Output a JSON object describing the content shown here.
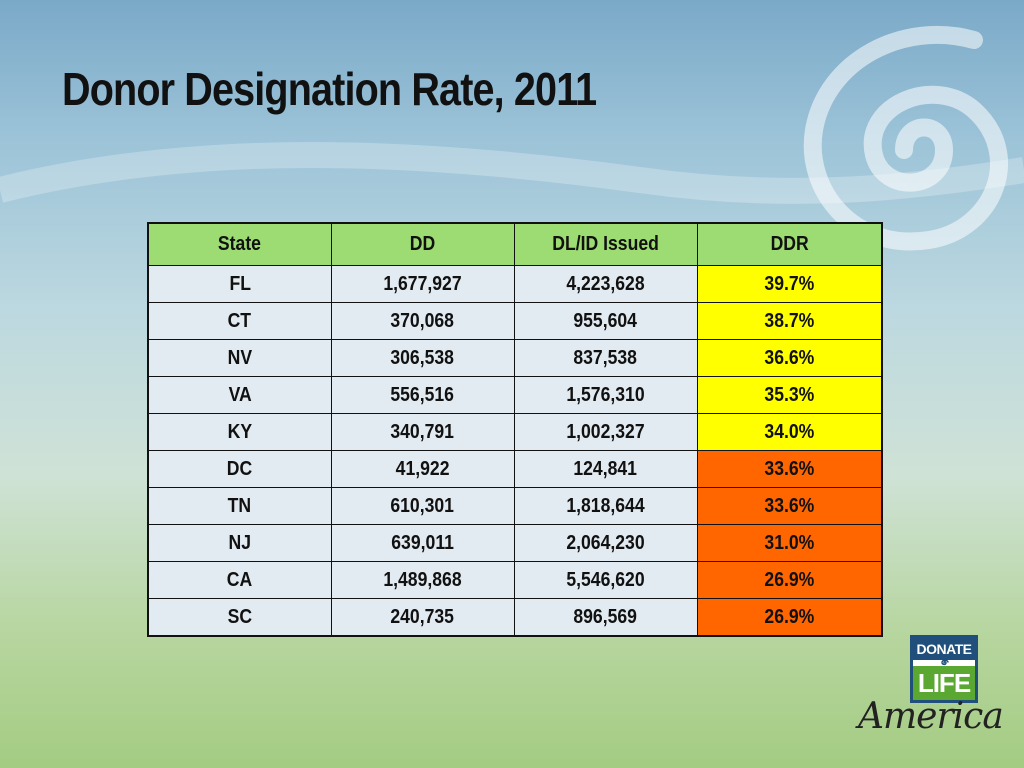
{
  "slide": {
    "title": "Donor Designation Rate, 2011"
  },
  "table": {
    "headers": [
      "State",
      "DD",
      "DL/ID Issued",
      "DDR"
    ],
    "rows": [
      {
        "state": "FL",
        "dd": "1,677,927",
        "dlid": "4,223,628",
        "ddr": "39.7%"
      },
      {
        "state": "CT",
        "dd": "370,068",
        "dlid": "955,604",
        "ddr": "38.7%"
      },
      {
        "state": "NV",
        "dd": "306,538",
        "dlid": "837,538",
        "ddr": "36.6%"
      },
      {
        "state": "VA",
        "dd": "556,516",
        "dlid": "1,576,310",
        "ddr": "35.3%"
      },
      {
        "state": "KY",
        "dd": "340,791",
        "dlid": "1,002,327",
        "ddr": "34.0%"
      },
      {
        "state": "DC",
        "dd": "41,922",
        "dlid": "124,841",
        "ddr": "33.6%"
      },
      {
        "state": "TN",
        "dd": "610,301",
        "dlid": "1,818,644",
        "ddr": "33.6%"
      },
      {
        "state": "NJ",
        "dd": "639,011",
        "dlid": "2,064,230",
        "ddr": "31.0%"
      },
      {
        "state": "CA",
        "dd": "1,489,868",
        "dlid": "5,546,620",
        "ddr": "26.9%"
      },
      {
        "state": "SC",
        "dd": "240,735",
        "dlid": "896,569",
        "ddr": "26.9%"
      }
    ],
    "colors": {
      "header": "#9ddc72",
      "ddr_high": "#ffff00",
      "ddr_low": "#ff6600"
    }
  },
  "logo": {
    "donate": "DONATE",
    "life": "LIFE",
    "america": "America"
  }
}
